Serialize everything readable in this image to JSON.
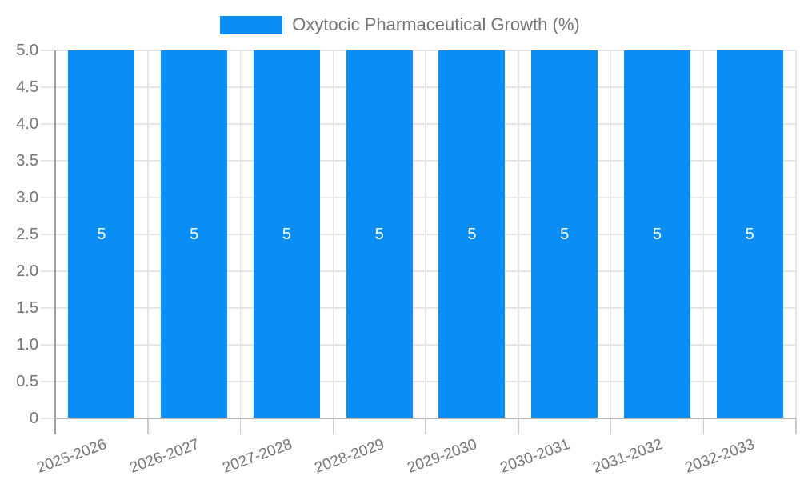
{
  "chart_data": {
    "type": "bar",
    "title": "Oxytocic Pharmaceutical Growth (%)",
    "categories": [
      "2025-2026",
      "2026-2027",
      "2027-2028",
      "2028-2029",
      "2029-2030",
      "2030-2031",
      "2031-2032",
      "2032-2033"
    ],
    "series": [
      {
        "name": "Oxytocic Pharmaceutical Growth (%)",
        "values": [
          5,
          5,
          5,
          5,
          5,
          5,
          5,
          5
        ]
      }
    ],
    "bar_value_labels": [
      "5",
      "5",
      "5",
      "5",
      "5",
      "5",
      "5",
      "5"
    ],
    "xlabel": "",
    "ylabel": "",
    "ylim": [
      0,
      5
    ],
    "y_tick_values": [
      5,
      4.5,
      4,
      3.5,
      3,
      2.5,
      2,
      1.5,
      1,
      0.5,
      0
    ],
    "y_tick_labels": [
      "5.0",
      "4.5",
      "4.0",
      "3.5",
      "3.0",
      "2.5",
      "2.0",
      "1.5",
      "1.0",
      "0.5",
      "0"
    ],
    "grid": true,
    "x_label_rotation_deg": -20,
    "legend_position": "top-center",
    "legend_entries": [
      {
        "label": "Oxytocic Pharmaceutical Growth (%)",
        "color": "#0a8df5"
      }
    ],
    "colors": {
      "bar": "#0a8df5",
      "grid": "#e6e6e6",
      "axis_line": "#9e9e9e",
      "baseline": "#b7b7b7",
      "bottom_tick": "#cccccc",
      "left_tick": "#e6e6e6",
      "text": "#757575",
      "bar_label_text": "#ffffff",
      "background": "#ffffff"
    }
  }
}
